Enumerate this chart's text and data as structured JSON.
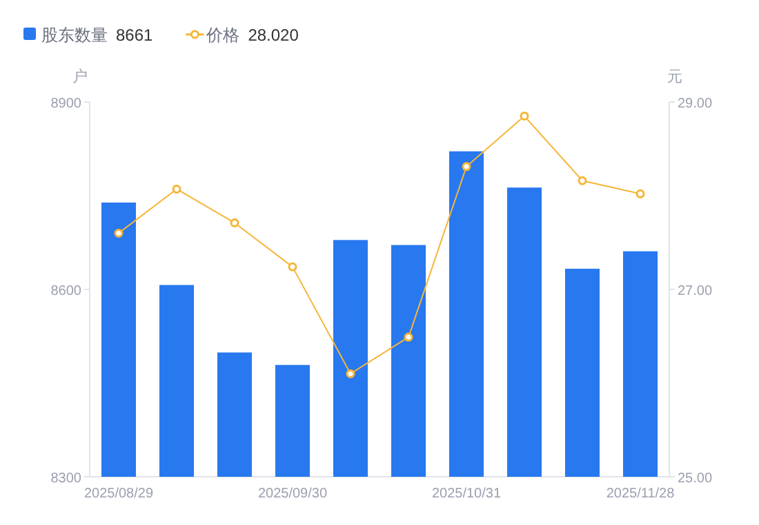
{
  "chart_data": {
    "type": "bar",
    "ylabel": "户",
    "y2label": "元",
    "categories": [
      "2025/08/29",
      null,
      null,
      "2025/09/30",
      null,
      null,
      "2025/10/31",
      null,
      null,
      "2025/11/28"
    ],
    "series": [
      {
        "name": "股东数量",
        "color": "#2878f0",
        "values": [
          8739,
          8607,
          8499,
          8479,
          8679,
          8671,
          8821,
          8763,
          8633,
          8661
        ]
      },
      {
        "name": "价格",
        "type": "line",
        "axis": "y2",
        "color": "#f5b638",
        "marker": "circle",
        "values": [
          27.6,
          28.07,
          27.71,
          27.24,
          26.1,
          26.49,
          28.31,
          28.85,
          28.16,
          28.02
        ]
      }
    ],
    "annotations": [
      "8661",
      "28.020"
    ],
    "ylim": [
      8300,
      8900
    ],
    "yticks": [
      8300,
      8600,
      8900
    ],
    "y2lim": [
      25,
      29
    ],
    "y2ticks": [
      {
        "value": 25,
        "label": "25.00"
      },
      {
        "value": 27,
        "label": "27.00"
      },
      {
        "value": 29,
        "label": "29.00"
      }
    ],
    "legend": "top left",
    "grid": false
  }
}
